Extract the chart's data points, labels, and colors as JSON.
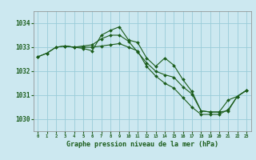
{
  "title": "Graphe pression niveau de la mer (hPa)",
  "bg_color": "#cce8f0",
  "grid_color": "#99ccd9",
  "line_color": "#1a5c1a",
  "marker_color": "#1a5c1a",
  "xlim": [
    -0.5,
    23.5
  ],
  "ylim": [
    1029.5,
    1034.5
  ],
  "yticks": [
    1030,
    1031,
    1032,
    1033,
    1034
  ],
  "xticks": [
    0,
    1,
    2,
    3,
    4,
    5,
    6,
    7,
    8,
    9,
    10,
    11,
    12,
    13,
    14,
    15,
    16,
    17,
    18,
    19,
    20,
    21,
    22,
    23
  ],
  "series": [
    {
      "x": [
        0,
        1,
        2,
        3,
        4,
        5,
        6,
        7,
        8,
        9,
        10,
        11,
        12,
        13,
        14,
        15,
        16,
        17,
        18,
        19,
        20,
        21,
        22,
        23
      ],
      "y": [
        1032.6,
        1032.75,
        1033.0,
        1033.05,
        1033.0,
        1032.95,
        1032.85,
        1033.5,
        1033.7,
        1033.85,
        1033.3,
        1033.2,
        1032.55,
        1032.2,
        1032.55,
        1032.25,
        1031.65,
        1031.15,
        1030.35,
        1030.3,
        1030.3,
        1030.35,
        1030.95,
        1031.2
      ]
    },
    {
      "x": [
        0,
        1,
        2,
        3,
        4,
        5,
        6,
        7,
        8,
        9,
        10,
        11,
        12,
        13,
        14,
        15,
        16,
        17,
        18,
        19,
        20,
        21,
        22,
        23
      ],
      "y": [
        1032.6,
        1032.75,
        1033.0,
        1033.05,
        1033.0,
        1033.05,
        1033.1,
        1033.35,
        1033.5,
        1033.5,
        1033.25,
        1032.8,
        1032.35,
        1032.0,
        1031.85,
        1031.75,
        1031.35,
        1031.05,
        1030.35,
        1030.3,
        1030.3,
        1030.8,
        1030.95,
        1031.2
      ]
    },
    {
      "x": [
        3,
        4,
        5,
        6,
        7,
        8,
        9,
        10,
        11,
        12,
        13,
        14,
        15,
        16,
        17,
        18,
        19,
        20,
        21,
        22,
        23
      ],
      "y": [
        1033.05,
        1033.0,
        1033.0,
        1033.0,
        1033.05,
        1033.1,
        1033.15,
        1033.0,
        1032.85,
        1032.2,
        1031.8,
        1031.5,
        1031.3,
        1030.9,
        1030.5,
        1030.2,
        1030.2,
        1030.2,
        1030.4,
        1030.95,
        1031.2
      ]
    }
  ]
}
